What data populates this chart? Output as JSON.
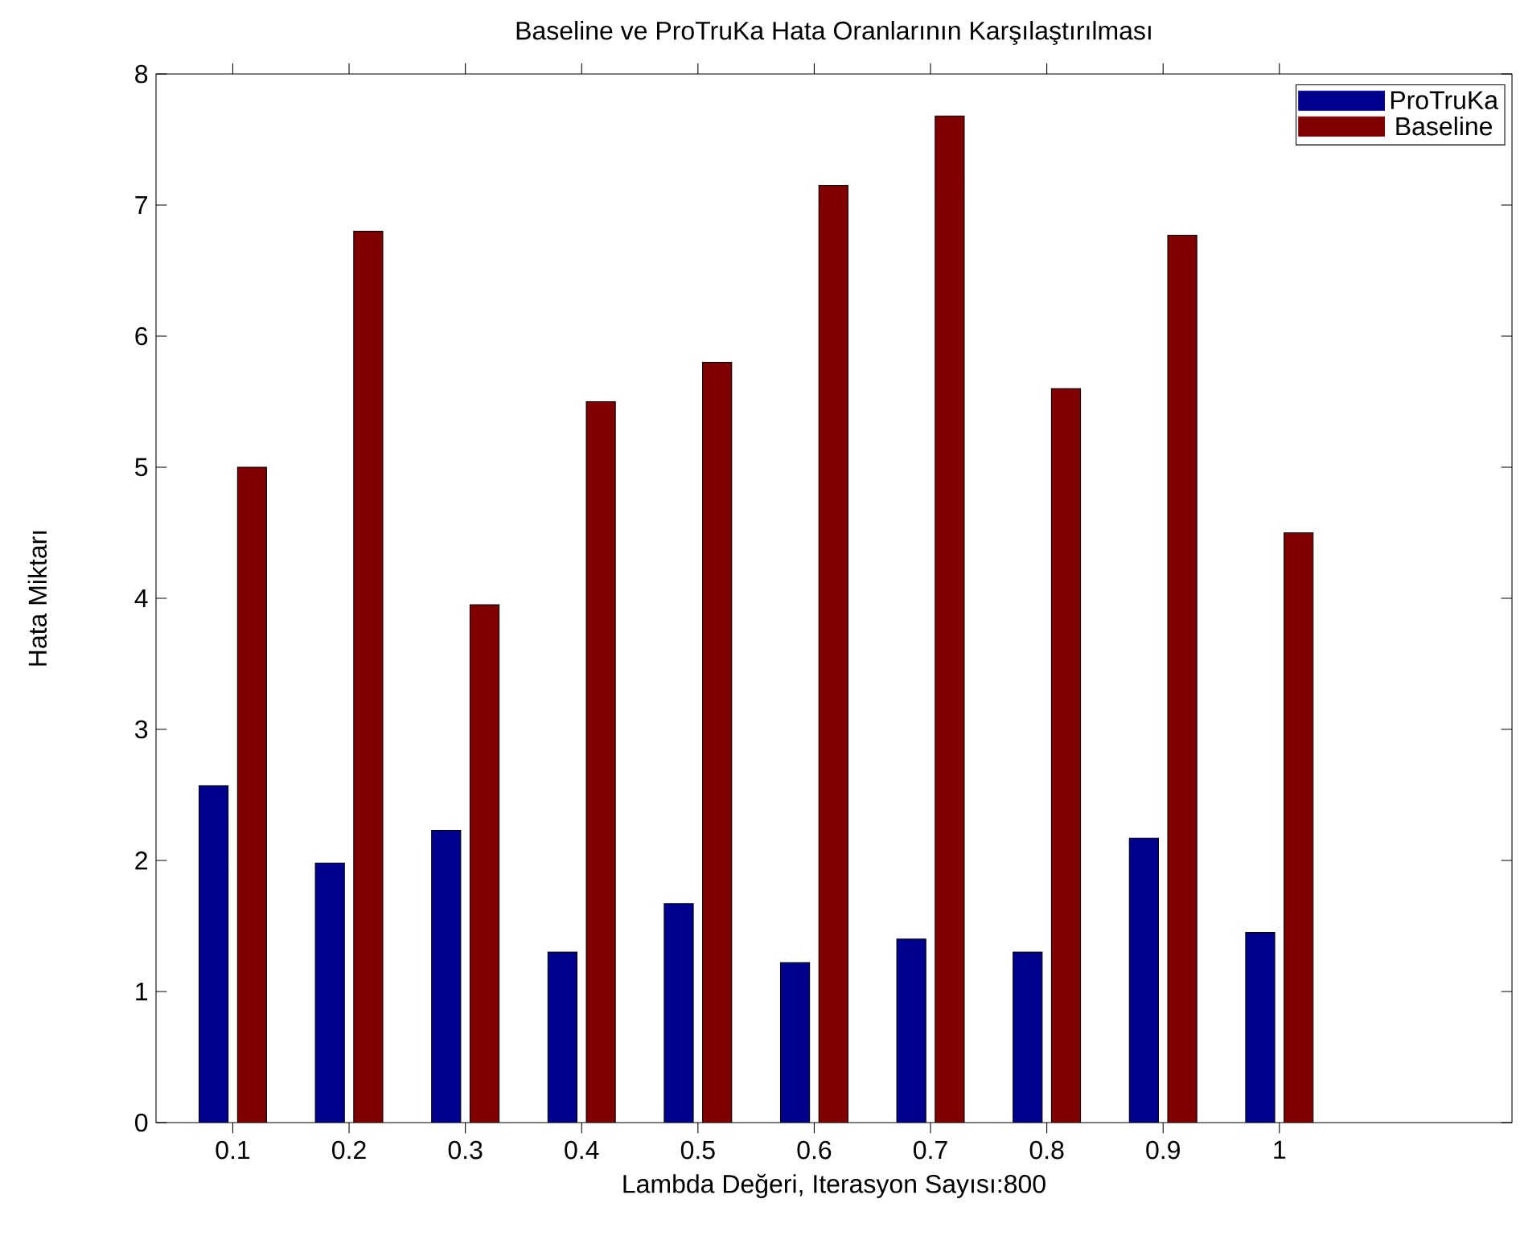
{
  "chart_data": {
    "type": "bar",
    "title": "Baseline ve ProTruKa Hata Oranlarının Karşılaştırılması",
    "xlabel": "Lambda Değeri, Iterasyon Sayısı:800",
    "ylabel": "Hata Miktarı",
    "x": [
      0.1,
      0.2,
      0.3,
      0.4,
      0.5,
      0.6,
      0.7,
      0.8,
      0.9,
      1
    ],
    "series": [
      {
        "name": "ProTruKa",
        "color": "#00008f",
        "values": [
          2.57,
          1.98,
          2.23,
          1.3,
          1.67,
          1.22,
          1.4,
          1.3,
          2.17,
          1.45
        ]
      },
      {
        "name": "Baseline",
        "color": "#800000",
        "values": [
          5.0,
          6.8,
          3.95,
          5.5,
          5.8,
          7.15,
          7.68,
          5.6,
          6.77,
          4.5
        ]
      }
    ],
    "xlim": [
      0.034,
      1.2
    ],
    "xticks": [
      0.1,
      0.2,
      0.3,
      0.4,
      0.5,
      0.6,
      0.7,
      0.8,
      0.9,
      1
    ],
    "ylim": [
      0,
      8
    ],
    "yticks": [
      0,
      1,
      2,
      3,
      4,
      5,
      6,
      7,
      8
    ],
    "grid": false,
    "legend": "top right"
  }
}
